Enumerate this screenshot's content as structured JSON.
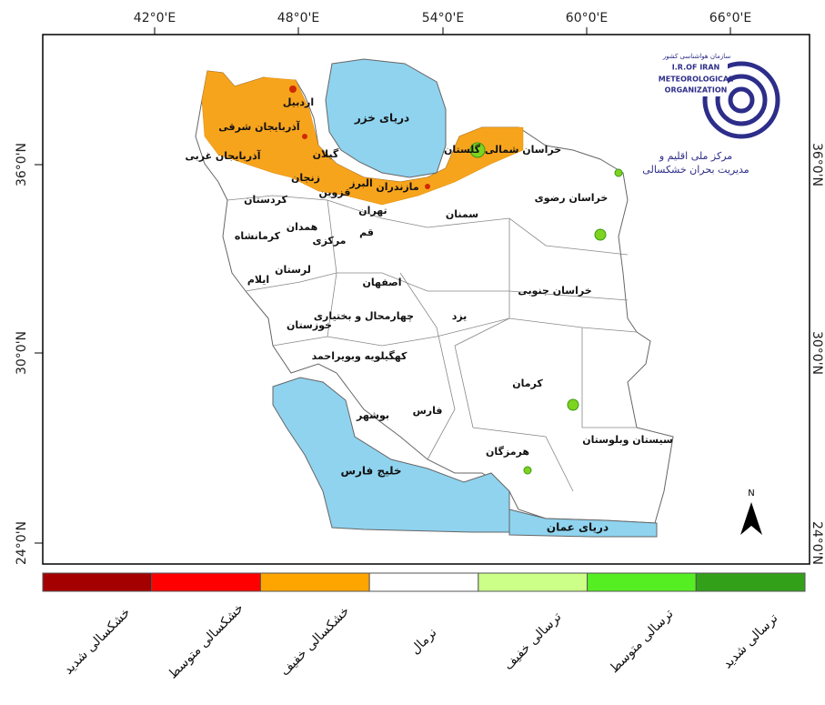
{
  "graticule": {
    "top": [
      "42°0'E",
      "48°0'E",
      "54°0'E",
      "60°0'E",
      "66°0'E"
    ],
    "left": [
      "36°0'N",
      "30°0'N",
      "24°0'N"
    ],
    "right": [
      "36°0'N",
      "30°0'N",
      "24°0'N"
    ]
  },
  "water": [
    "دریای خزر",
    "خلیج فارس",
    "دریای عمان"
  ],
  "provinces": [
    "اردبیل",
    "آذربایجان شرقی",
    "آذربایجان غربی",
    "گیلان",
    "زنجان",
    "قزوین",
    "البرز",
    "مازندران",
    "تهران",
    "سمنان",
    "گلستان",
    "خراسان شمالی",
    "خراسان رضوی",
    "کردستان",
    "همدان",
    "کرمانشاه",
    "مرکزی",
    "قم",
    "لرستان",
    "ایلام",
    "اصفهان",
    "خوزستان",
    "چهارمحال و بختیاری",
    "یزد",
    "خراسان جنوبی",
    "کهگیلویه وبویراحمد",
    "کرمان",
    "فارس",
    "بوشهر",
    "هرمزگان",
    "سیستان وبلوستان"
  ],
  "logo": {
    "org_fa": "سازمان هواشناسی کشور",
    "line1": "I.R.OF IRAN",
    "line2": "METEOROLOGICAL",
    "line3": "ORGANIZATION",
    "center1": "مرکز ملی اقلیم و",
    "center2": "مدیریت بحران خشکسالی"
  },
  "north": "N",
  "legend": [
    {
      "label": "خشکسالی شدید",
      "color": "#a50000"
    },
    {
      "label": "خشکسالی متوسط",
      "color": "#ff0000"
    },
    {
      "label": "خشکسالی خفیف",
      "color": "#ffa500"
    },
    {
      "label": "نرمال",
      "color": "#ffffff"
    },
    {
      "label": "ترسالی خفیف",
      "color": "#ccff88"
    },
    {
      "label": "ترسالی متوسط",
      "color": "#55ee22"
    },
    {
      "label": "ترسالی شدید",
      "color": "#33a01a"
    }
  ]
}
